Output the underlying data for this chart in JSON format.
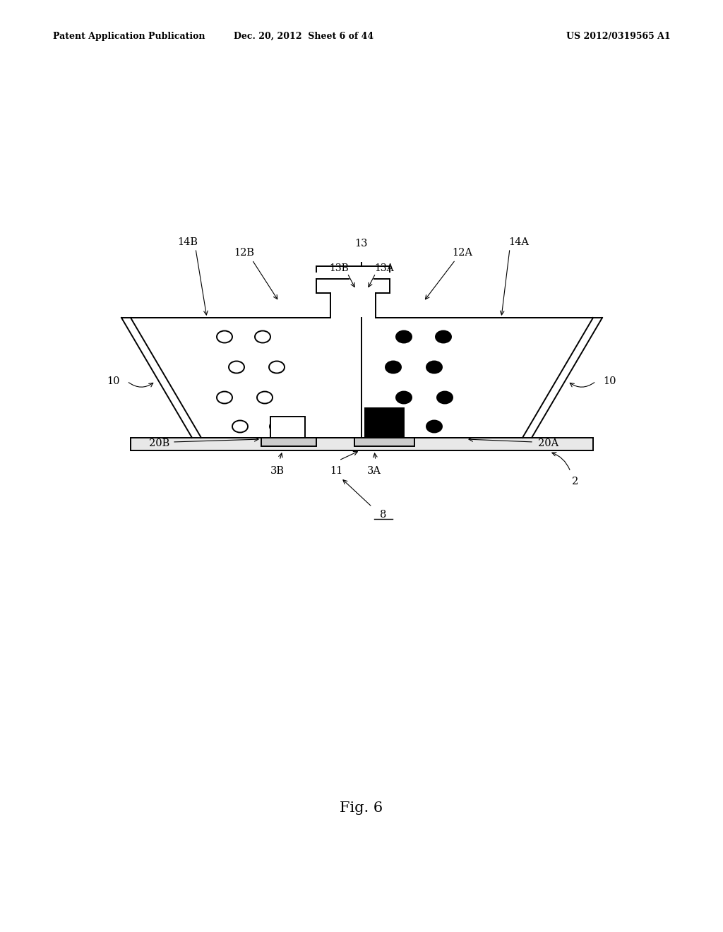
{
  "bg_color": "#ffffff",
  "header_left": "Patent Application Publication",
  "header_mid": "Dec. 20, 2012  Sheet 6 of 44",
  "header_right": "US 2012/0319565 A1",
  "fig_label": "Fig. 6"
}
